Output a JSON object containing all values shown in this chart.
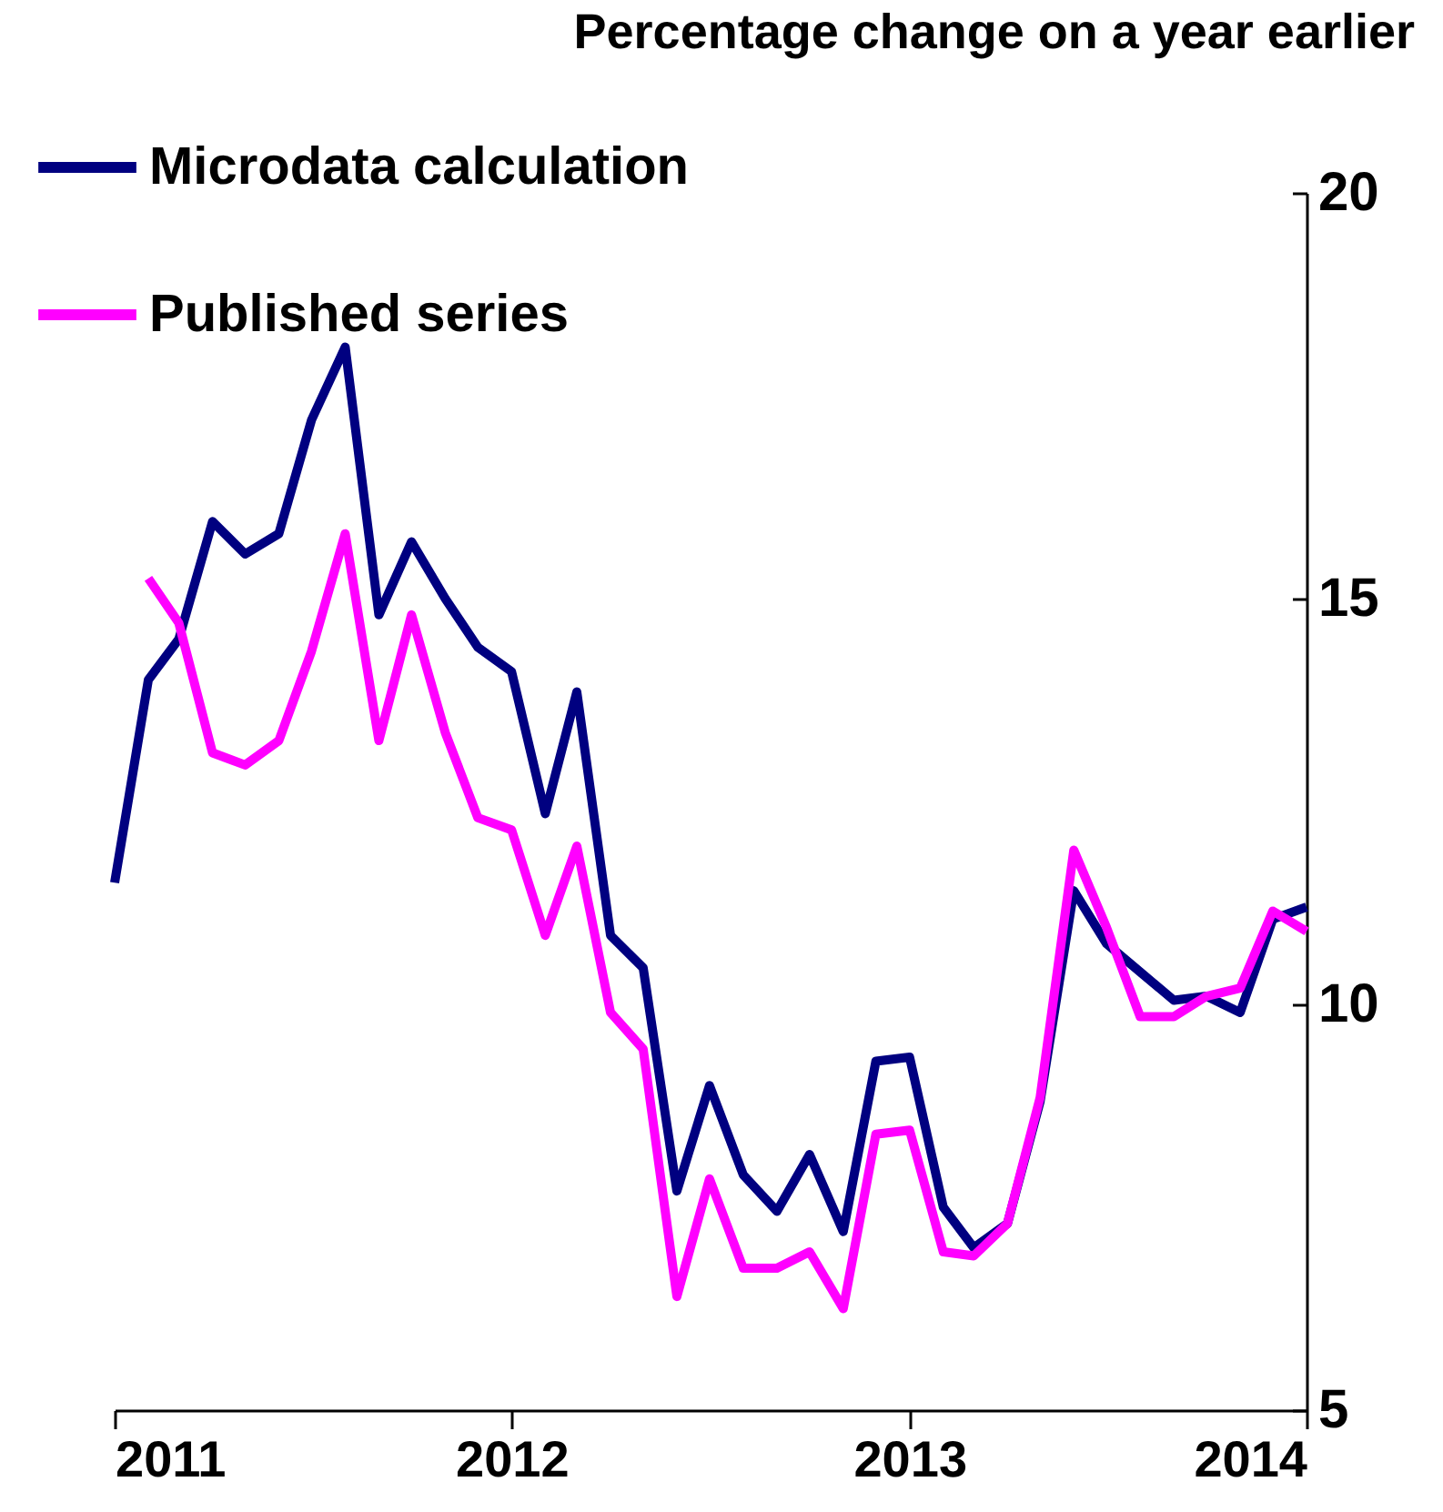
{
  "chart_data": {
    "type": "line",
    "ylabel": "Percentage change on a year earlier",
    "x": [
      "2011-01",
      "2011-02",
      "2011-03",
      "2011-04",
      "2011-05",
      "2011-06",
      "2011-07",
      "2011-08",
      "2011-09",
      "2011-10",
      "2011-11",
      "2011-12",
      "2012-01",
      "2012-02",
      "2012-03",
      "2012-04",
      "2012-05",
      "2012-06",
      "2012-07",
      "2012-08",
      "2012-09",
      "2012-10",
      "2012-11",
      "2012-12",
      "2013-01",
      "2013-02",
      "2013-03",
      "2013-04",
      "2013-05",
      "2013-06",
      "2013-07",
      "2013-08",
      "2013-09",
      "2013-10",
      "2013-11",
      "2013-12",
      "2014-01"
    ],
    "series": [
      {
        "name": "Microdata calculation",
        "color": "#000080",
        "values": [
          11.5,
          14.0,
          14.5,
          15.95,
          15.55,
          15.8,
          17.2,
          18.1,
          14.8,
          15.7,
          15.0,
          14.4,
          14.1,
          12.35,
          13.85,
          10.85,
          10.45,
          7.7,
          9.0,
          7.9,
          7.45,
          8.15,
          7.2,
          9.3,
          9.35,
          7.5,
          7.0,
          7.3,
          8.8,
          11.4,
          10.75,
          10.4,
          10.05,
          10.1,
          9.9,
          11.05,
          11.2
        ]
      },
      {
        "name": "Published series",
        "color": "#ff00ff",
        "values": [
          null,
          15.25,
          14.7,
          13.1,
          12.95,
          13.25,
          14.35,
          15.8,
          13.25,
          14.8,
          13.35,
          12.3,
          12.15,
          10.85,
          11.95,
          9.9,
          9.45,
          6.4,
          7.85,
          6.75,
          6.75,
          6.95,
          6.25,
          8.4,
          8.45,
          6.95,
          6.9,
          7.3,
          8.85,
          11.9,
          10.95,
          9.85,
          9.85,
          10.1,
          10.2,
          11.15,
          10.9
        ]
      }
    ],
    "xlim": [
      "2011-01",
      "2014-01"
    ],
    "xticks": [
      "2011",
      "2012",
      "2013",
      "2014"
    ],
    "ylim": [
      5,
      20
    ],
    "yticks": [
      5,
      10,
      15,
      20
    ],
    "grid": false,
    "legend": "top left",
    "marker": "none",
    "line_style": "solid"
  }
}
